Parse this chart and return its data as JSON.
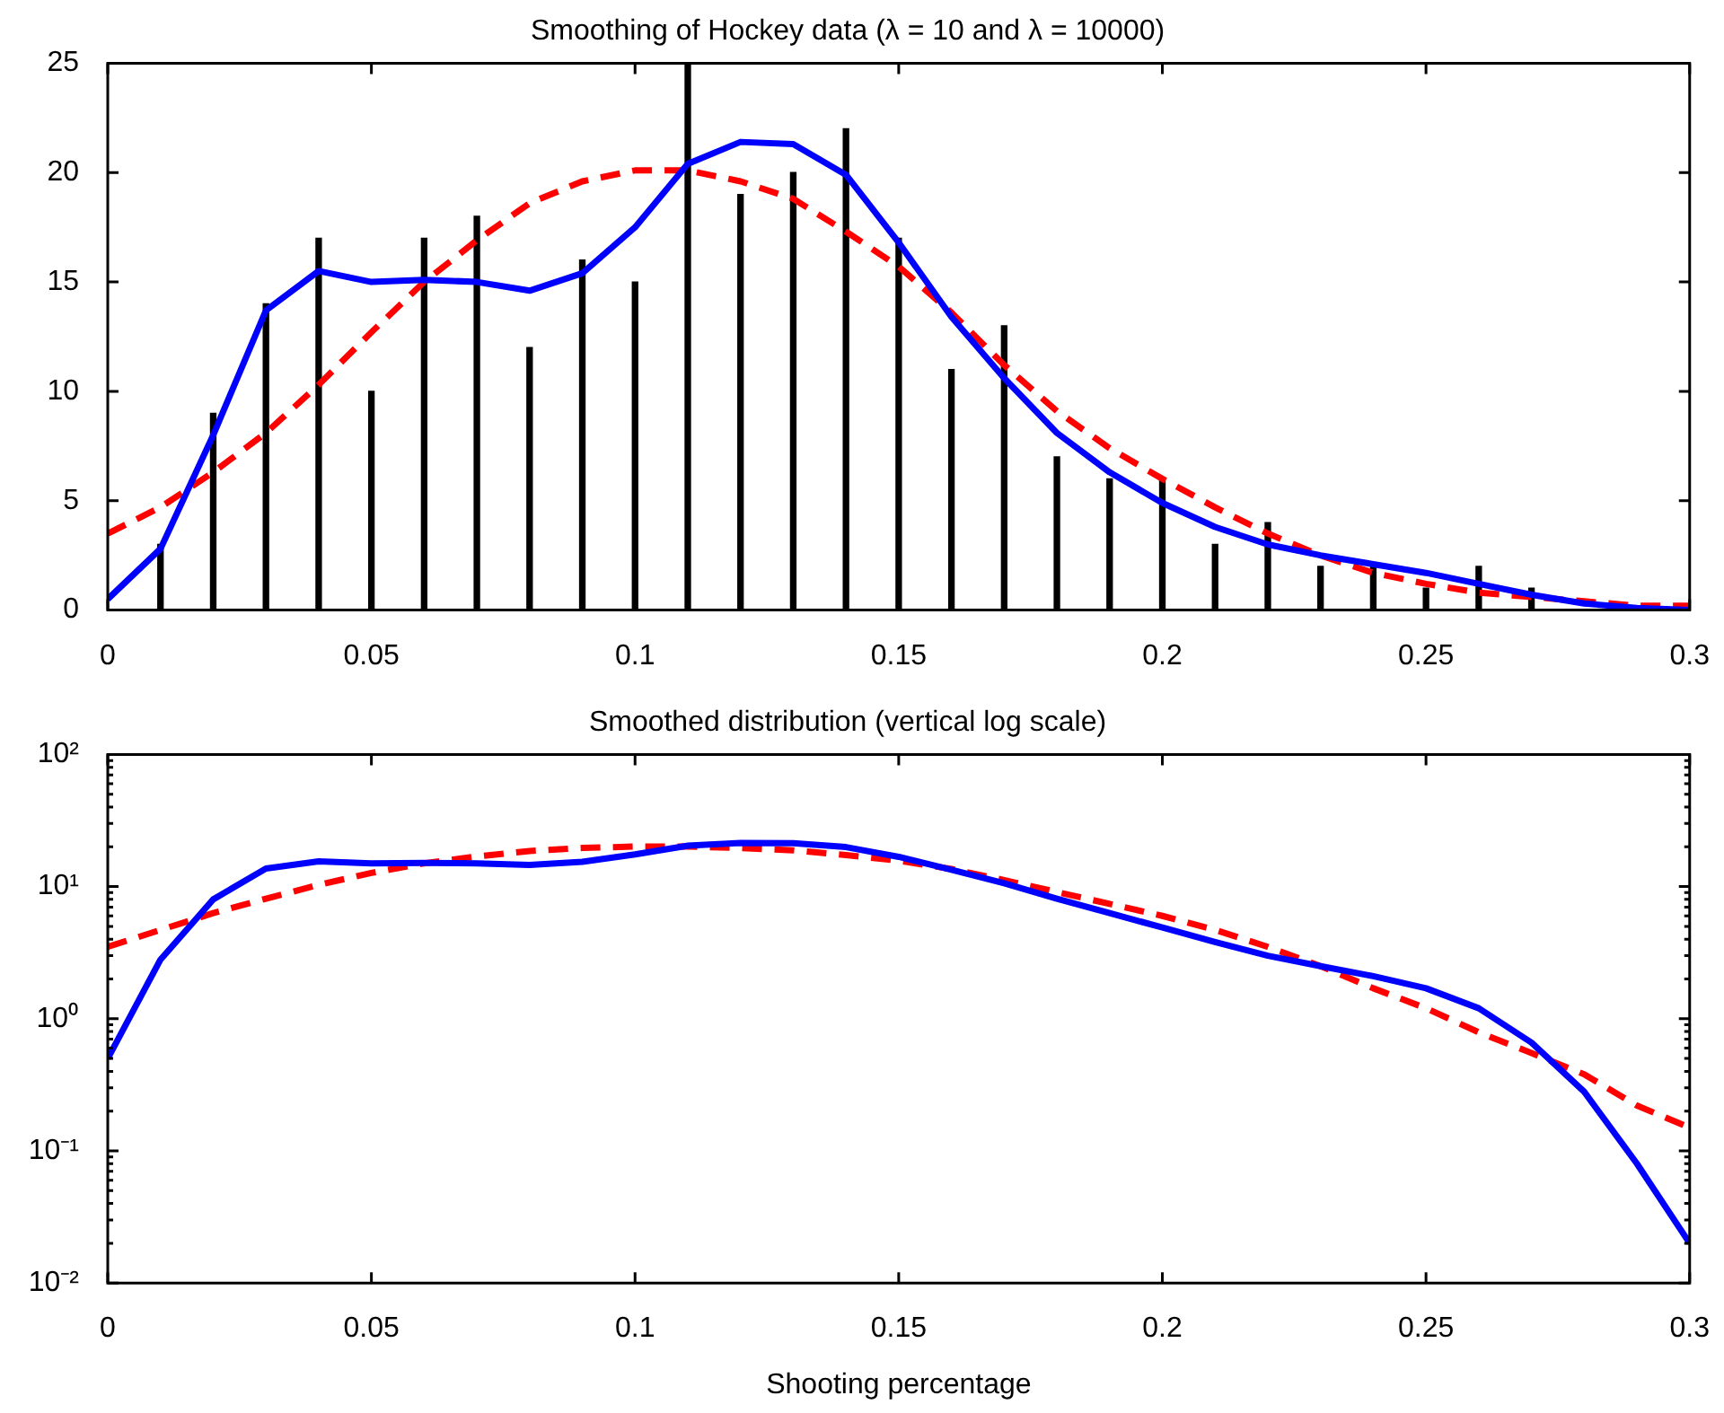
{
  "chart_data": [
    {
      "type": "line",
      "title": "Smoothing of Hockey data (λ = 10 and λ = 10000)",
      "x": [
        0,
        0.01,
        0.02,
        0.03,
        0.04,
        0.05,
        0.06,
        0.07,
        0.08,
        0.09,
        0.1,
        0.11,
        0.12,
        0.13,
        0.14,
        0.15,
        0.16,
        0.17,
        0.18,
        0.19,
        0.2,
        0.21,
        0.22,
        0.23,
        0.24,
        0.25,
        0.26,
        0.27,
        0.28,
        0.29,
        0.3
      ],
      "xlim": [
        0,
        0.3
      ],
      "xticks": [
        0,
        0.05,
        0.1,
        0.15,
        0.2,
        0.25,
        0.3
      ],
      "ylim": [
        0,
        25
      ],
      "yticks": [
        0,
        5,
        10,
        15,
        20,
        25
      ],
      "marker": "none",
      "series": [
        {
          "type": "bar",
          "color": "#000000",
          "x": [
            0.01,
            0.02,
            0.03,
            0.04,
            0.05,
            0.06,
            0.07,
            0.08,
            0.09,
            0.1,
            0.11,
            0.12,
            0.13,
            0.14,
            0.15,
            0.16,
            0.17,
            0.18,
            0.19,
            0.2,
            0.21,
            0.22,
            0.23,
            0.24,
            0.25,
            0.26,
            0.27
          ],
          "values": [
            3,
            9,
            14,
            17,
            10,
            17,
            18,
            12,
            16,
            15,
            25,
            19,
            20,
            22,
            17,
            11,
            13,
            7,
            6,
            6,
            3,
            4,
            2,
            2,
            1,
            2,
            1
          ]
        },
        {
          "color": "#0000ff",
          "line_style": "solid",
          "values": [
            0.5,
            2.8,
            8,
            13.7,
            15.5,
            15,
            15.1,
            15,
            14.6,
            15.4,
            17.5,
            20.4,
            21.4,
            21.3,
            19.9,
            16.8,
            13.4,
            10.6,
            8.1,
            6.3,
            4.9,
            3.8,
            3,
            2.5,
            2.1,
            1.7,
            1.2,
            0.7,
            0.3,
            0.1,
            0
          ]
        },
        {
          "color": "#ff0000",
          "line_style": "dashed",
          "values": [
            3.5,
            4.7,
            6.3,
            8.1,
            10.3,
            12.7,
            15,
            16.9,
            18.6,
            19.6,
            20.1,
            20.1,
            19.6,
            18.8,
            17.3,
            15.7,
            13.6,
            11.2,
            9.1,
            7.4,
            6,
            4.7,
            3.5,
            2.5,
            1.7,
            1.2,
            0.8,
            0.6,
            0.4,
            0.2,
            0.2
          ]
        }
      ]
    },
    {
      "type": "line",
      "title": "Smoothed distribution (vertical log scale)",
      "xlabel": "Shooting percentage",
      "log": "y",
      "x": [
        0,
        0.01,
        0.02,
        0.03,
        0.04,
        0.05,
        0.06,
        0.07,
        0.08,
        0.09,
        0.1,
        0.11,
        0.12,
        0.13,
        0.14,
        0.15,
        0.16,
        0.17,
        0.18,
        0.19,
        0.2,
        0.21,
        0.22,
        0.23,
        0.24,
        0.25,
        0.26,
        0.27,
        0.28,
        0.29,
        0.3
      ],
      "xlim": [
        0,
        0.3
      ],
      "xticks": [
        0,
        0.05,
        0.1,
        0.15,
        0.2,
        0.25,
        0.3
      ],
      "ylim": [
        0.01,
        100
      ],
      "yticks": [
        {
          "value": 0.01,
          "label": "10⁻²"
        },
        {
          "value": 0.02,
          "label": null
        },
        {
          "value": 0.03,
          "label": null
        },
        {
          "value": 0.04,
          "label": null
        },
        {
          "value": 0.05,
          "label": null
        },
        {
          "value": 0.06,
          "label": null
        },
        {
          "value": 0.07,
          "label": null
        },
        {
          "value": 0.08,
          "label": null
        },
        {
          "value": 0.09,
          "label": null
        },
        {
          "value": 0.1,
          "label": "10⁻¹"
        },
        {
          "value": 0.2,
          "label": null
        },
        {
          "value": 0.3,
          "label": null
        },
        {
          "value": 0.4,
          "label": null
        },
        {
          "value": 0.5,
          "label": null
        },
        {
          "value": 0.6,
          "label": null
        },
        {
          "value": 0.7,
          "label": null
        },
        {
          "value": 0.8,
          "label": null
        },
        {
          "value": 0.9,
          "label": null
        },
        {
          "value": 1,
          "label": "10⁰"
        },
        {
          "value": 2,
          "label": null
        },
        {
          "value": 3,
          "label": null
        },
        {
          "value": 4,
          "label": null
        },
        {
          "value": 5,
          "label": null
        },
        {
          "value": 6,
          "label": null
        },
        {
          "value": 7,
          "label": null
        },
        {
          "value": 8,
          "label": null
        },
        {
          "value": 9,
          "label": null
        },
        {
          "value": 10,
          "label": "10¹"
        },
        {
          "value": 20,
          "label": null
        },
        {
          "value": 30,
          "label": null
        },
        {
          "value": 40,
          "label": null
        },
        {
          "value": 50,
          "label": null
        },
        {
          "value": 60,
          "label": null
        },
        {
          "value": 70,
          "label": null
        },
        {
          "value": 80,
          "label": null
        },
        {
          "value": 90,
          "label": null
        },
        {
          "value": 100,
          "label": "10²"
        }
      ],
      "marker": "none",
      "series": [
        {
          "color": "#0000ff",
          "line_style": "solid",
          "values": [
            0.5,
            2.8,
            8,
            13.7,
            15.5,
            15,
            15.1,
            15,
            14.6,
            15.4,
            17.5,
            20.4,
            21.4,
            21.3,
            19.9,
            16.8,
            13.4,
            10.6,
            8.1,
            6.3,
            4.9,
            3.8,
            3,
            2.5,
            2.1,
            1.7,
            1.2,
            0.66,
            0.28,
            0.08,
            0.02
          ]
        },
        {
          "color": "#ff0000",
          "line_style": "dashed",
          "values": [
            3.5,
            4.7,
            6.3,
            8.1,
            10.3,
            12.7,
            15,
            16.9,
            18.6,
            19.6,
            20.1,
            20.1,
            19.6,
            18.8,
            17.3,
            15.7,
            13.6,
            11.2,
            9.1,
            7.4,
            6,
            4.7,
            3.5,
            2.5,
            1.7,
            1.2,
            0.79,
            0.55,
            0.38,
            0.22,
            0.15
          ]
        }
      ]
    }
  ]
}
